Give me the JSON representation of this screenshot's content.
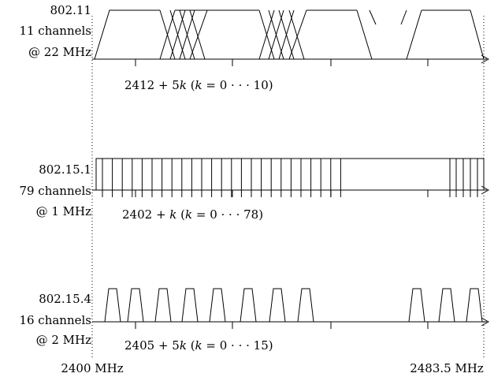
{
  "bands": [
    {
      "standard": "802.11",
      "channels_text": "11 channels",
      "width_text": "@ 22 MHz",
      "formula": {
        "base": "2412 + 5",
        "var": "k",
        "open": " (",
        "cond": " = 0 · · · 10)"
      },
      "channel_count": 11,
      "channel_width_mhz": 22
    },
    {
      "standard": "802.15.1",
      "channels_text": "79 channels",
      "width_text": "@ 1 MHz",
      "formula": {
        "base": "2402 + ",
        "var": "k",
        "open": " (",
        "cond": " = 0 · · · 78)"
      },
      "channel_count": 79,
      "channel_width_mhz": 1
    },
    {
      "standard": "802.15.4",
      "channels_text": "16 channels",
      "width_text": "@ 2 MHz",
      "formula": {
        "base": "2405 + 5",
        "var": "k",
        "open": " (",
        "cond": " = 0 · · · 15)"
      },
      "channel_count": 16,
      "channel_width_mhz": 2
    }
  ],
  "axis": {
    "start_label": "2400 MHz",
    "end_label": "2483.5 MHz"
  }
}
